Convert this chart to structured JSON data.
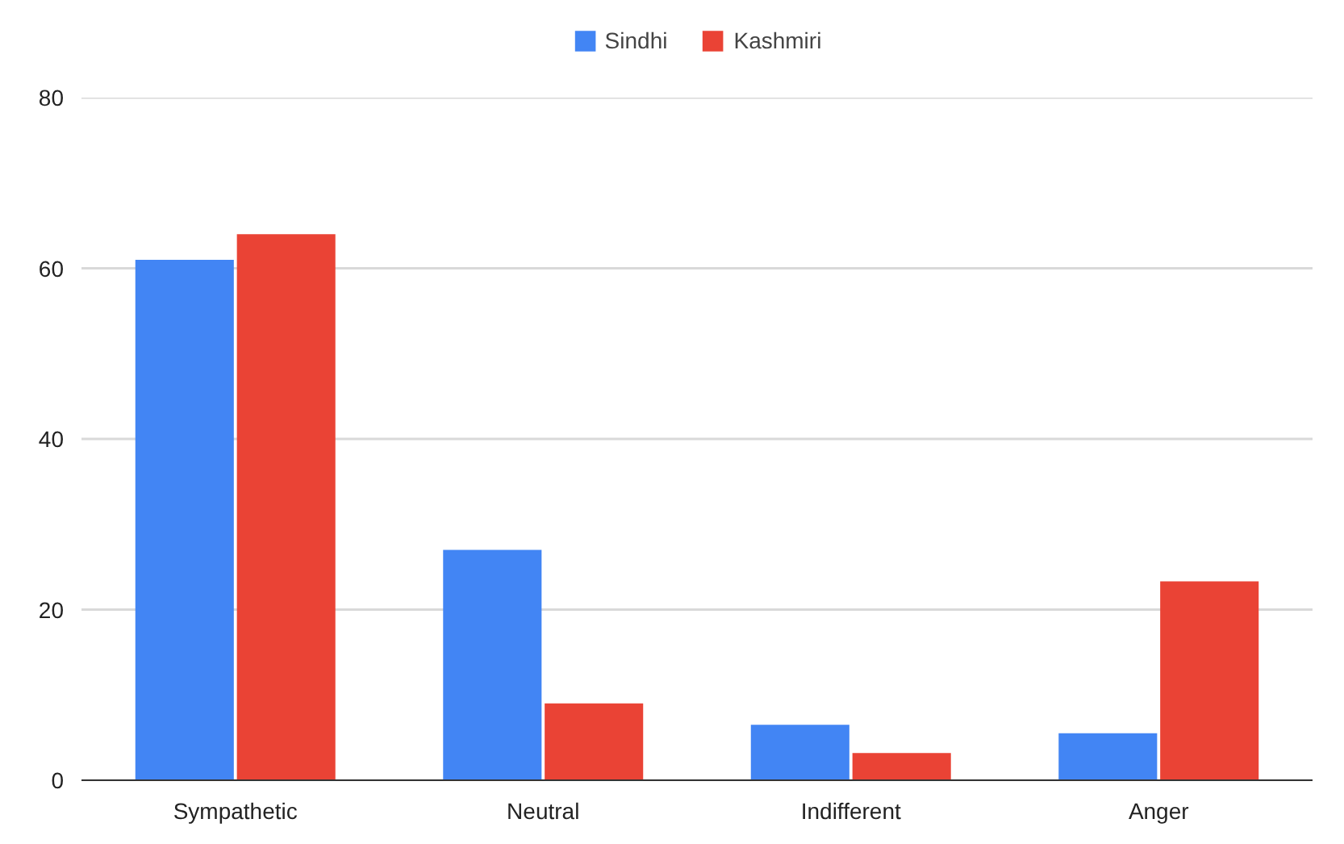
{
  "chart_data": {
    "type": "bar",
    "categories": [
      "Sympathetic",
      "Neutral",
      "Indifferent",
      "Anger"
    ],
    "series": [
      {
        "name": "Sindhi",
        "color": "#4285f4",
        "values": [
          61,
          27,
          6.5,
          5.5
        ]
      },
      {
        "name": "Kashmiri",
        "color": "#ea4335",
        "values": [
          64,
          9,
          3.2,
          23.3
        ]
      }
    ],
    "ylim": [
      0,
      80
    ],
    "yticks": [
      0,
      20,
      40,
      60,
      80
    ],
    "grid": "y",
    "legend": "top"
  }
}
